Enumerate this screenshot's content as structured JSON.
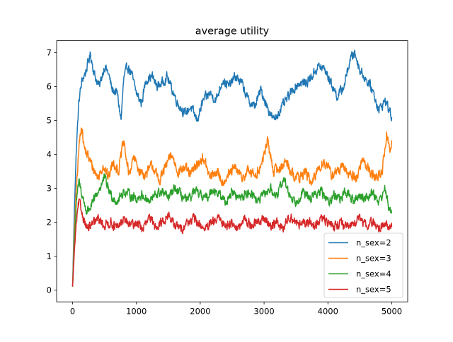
{
  "chart_data": {
    "type": "line",
    "title": "average utility",
    "xlabel": "",
    "ylabel": "",
    "xlim": [
      -250,
      5250
    ],
    "ylim": [
      -0.35,
      7.35
    ],
    "x_ticks": [
      0,
      1000,
      2000,
      3000,
      4000,
      5000
    ],
    "y_ticks": [
      0,
      1,
      2,
      3,
      4,
      5,
      6,
      7
    ],
    "grid": false,
    "legend_position": "lower right",
    "x_range": [
      0,
      5000
    ],
    "series": [
      {
        "name": "n_sex=2",
        "color": "#1f77b4",
        "keypoints": [
          [
            0,
            0.1
          ],
          [
            30,
            2.5
          ],
          [
            60,
            4.2
          ],
          [
            100,
            5.6
          ],
          [
            150,
            6.2
          ],
          [
            200,
            6.4
          ],
          [
            280,
            6.95
          ],
          [
            350,
            6.3
          ],
          [
            420,
            6.0
          ],
          [
            500,
            6.6
          ],
          [
            560,
            6.4
          ],
          [
            620,
            5.9
          ],
          [
            700,
            5.8
          ],
          [
            760,
            5.0
          ],
          [
            800,
            6.2
          ],
          [
            860,
            6.6
          ],
          [
            920,
            6.4
          ],
          [
            1000,
            5.8
          ],
          [
            1080,
            5.5
          ],
          [
            1150,
            6.2
          ],
          [
            1250,
            6.3
          ],
          [
            1320,
            6.0
          ],
          [
            1400,
            6.1
          ],
          [
            1480,
            6.3
          ],
          [
            1560,
            5.9
          ],
          [
            1650,
            5.5
          ],
          [
            1760,
            5.2
          ],
          [
            1850,
            5.4
          ],
          [
            1950,
            5.0
          ],
          [
            2050,
            5.6
          ],
          [
            2150,
            5.8
          ],
          [
            2250,
            5.6
          ],
          [
            2350,
            6.2
          ],
          [
            2450,
            6.0
          ],
          [
            2550,
            6.3
          ],
          [
            2650,
            6.1
          ],
          [
            2750,
            5.6
          ],
          [
            2850,
            5.4
          ],
          [
            2950,
            5.9
          ],
          [
            3050,
            5.4
          ],
          [
            3150,
            5.0
          ],
          [
            3250,
            5.3
          ],
          [
            3350,
            5.6
          ],
          [
            3450,
            5.9
          ],
          [
            3550,
            6.1
          ],
          [
            3650,
            6.1
          ],
          [
            3750,
            6.3
          ],
          [
            3850,
            6.6
          ],
          [
            3950,
            6.5
          ],
          [
            4050,
            6.1
          ],
          [
            4150,
            5.7
          ],
          [
            4250,
            6.0
          ],
          [
            4350,
            6.8
          ],
          [
            4420,
            7.0
          ],
          [
            4500,
            6.5
          ],
          [
            4600,
            6.2
          ],
          [
            4700,
            5.9
          ],
          [
            4800,
            5.3
          ],
          [
            4900,
            5.6
          ],
          [
            5000,
            5.1
          ]
        ]
      },
      {
        "name": "n_sex=3",
        "color": "#ff7f0e",
        "keypoints": [
          [
            0,
            0.1
          ],
          [
            30,
            1.8
          ],
          [
            60,
            3.0
          ],
          [
            100,
            4.2
          ],
          [
            140,
            4.9
          ],
          [
            180,
            4.2
          ],
          [
            250,
            3.9
          ],
          [
            320,
            3.6
          ],
          [
            400,
            3.3
          ],
          [
            480,
            3.7
          ],
          [
            560,
            3.3
          ],
          [
            640,
            3.8
          ],
          [
            720,
            3.5
          ],
          [
            800,
            4.4
          ],
          [
            880,
            3.4
          ],
          [
            960,
            3.9
          ],
          [
            1050,
            3.5
          ],
          [
            1150,
            3.4
          ],
          [
            1250,
            3.7
          ],
          [
            1350,
            3.2
          ],
          [
            1450,
            3.6
          ],
          [
            1550,
            4.0
          ],
          [
            1650,
            3.5
          ],
          [
            1750,
            3.6
          ],
          [
            1850,
            3.4
          ],
          [
            1950,
            3.7
          ],
          [
            2050,
            3.9
          ],
          [
            2150,
            3.3
          ],
          [
            2250,
            3.5
          ],
          [
            2350,
            3.2
          ],
          [
            2450,
            3.4
          ],
          [
            2550,
            3.6
          ],
          [
            2650,
            3.3
          ],
          [
            2750,
            3.5
          ],
          [
            2850,
            3.4
          ],
          [
            2950,
            3.6
          ],
          [
            3050,
            4.4
          ],
          [
            3150,
            3.5
          ],
          [
            3250,
            3.6
          ],
          [
            3350,
            3.8
          ],
          [
            3450,
            3.4
          ],
          [
            3550,
            3.3
          ],
          [
            3650,
            3.5
          ],
          [
            3750,
            3.1
          ],
          [
            3850,
            3.6
          ],
          [
            3950,
            3.8
          ],
          [
            4050,
            3.4
          ],
          [
            4150,
            3.5
          ],
          [
            4250,
            3.6
          ],
          [
            4350,
            3.4
          ],
          [
            4450,
            3.3
          ],
          [
            4550,
            3.9
          ],
          [
            4650,
            3.5
          ],
          [
            4750,
            3.3
          ],
          [
            4850,
            3.5
          ],
          [
            4920,
            4.6
          ],
          [
            4970,
            4.1
          ],
          [
            5000,
            4.3
          ]
        ]
      },
      {
        "name": "n_sex=4",
        "color": "#2ca02c",
        "keypoints": [
          [
            0,
            0.1
          ],
          [
            30,
            1.5
          ],
          [
            60,
            2.6
          ],
          [
            100,
            3.2
          ],
          [
            150,
            2.8
          ],
          [
            220,
            2.3
          ],
          [
            300,
            2.5
          ],
          [
            400,
            2.9
          ],
          [
            500,
            3.3
          ],
          [
            600,
            2.8
          ],
          [
            700,
            2.6
          ],
          [
            800,
            2.9
          ],
          [
            900,
            2.8
          ],
          [
            1000,
            2.7
          ],
          [
            1100,
            2.8
          ],
          [
            1200,
            2.6
          ],
          [
            1300,
            2.8
          ],
          [
            1400,
            2.9
          ],
          [
            1500,
            2.7
          ],
          [
            1600,
            3.0
          ],
          [
            1700,
            2.8
          ],
          [
            1800,
            2.6
          ],
          [
            1900,
            2.9
          ],
          [
            2000,
            2.8
          ],
          [
            2100,
            2.7
          ],
          [
            2200,
            3.0
          ],
          [
            2300,
            2.8
          ],
          [
            2400,
            2.6
          ],
          [
            2500,
            2.9
          ],
          [
            2600,
            2.7
          ],
          [
            2700,
            2.8
          ],
          [
            2800,
            2.9
          ],
          [
            2900,
            2.6
          ],
          [
            3000,
            2.8
          ],
          [
            3100,
            3.0
          ],
          [
            3200,
            2.7
          ],
          [
            3300,
            3.3
          ],
          [
            3400,
            2.8
          ],
          [
            3500,
            2.6
          ],
          [
            3600,
            2.9
          ],
          [
            3700,
            2.7
          ],
          [
            3800,
            2.8
          ],
          [
            3900,
            2.9
          ],
          [
            4000,
            2.6
          ],
          [
            4100,
            2.8
          ],
          [
            4200,
            2.7
          ],
          [
            4300,
            2.9
          ],
          [
            4400,
            2.6
          ],
          [
            4500,
            2.8
          ],
          [
            4600,
            2.7
          ],
          [
            4700,
            2.9
          ],
          [
            4800,
            2.6
          ],
          [
            4900,
            3.0
          ],
          [
            4960,
            2.3
          ],
          [
            5000,
            2.4
          ]
        ]
      },
      {
        "name": "n_sex=5",
        "color": "#d62728",
        "keypoints": [
          [
            0,
            0.1
          ],
          [
            30,
            1.2
          ],
          [
            60,
            2.0
          ],
          [
            100,
            2.6
          ],
          [
            160,
            2.2
          ],
          [
            230,
            1.8
          ],
          [
            300,
            1.9
          ],
          [
            400,
            2.1
          ],
          [
            500,
            1.9
          ],
          [
            600,
            2.0
          ],
          [
            700,
            1.8
          ],
          [
            800,
            2.1
          ],
          [
            900,
            1.9
          ],
          [
            1000,
            2.0
          ],
          [
            1100,
            1.8
          ],
          [
            1200,
            2.1
          ],
          [
            1300,
            1.9
          ],
          [
            1400,
            2.0
          ],
          [
            1500,
            2.2
          ],
          [
            1600,
            1.9
          ],
          [
            1700,
            1.8
          ],
          [
            1800,
            2.0
          ],
          [
            1900,
            2.1
          ],
          [
            2000,
            1.9
          ],
          [
            2100,
            1.8
          ],
          [
            2200,
            2.0
          ],
          [
            2300,
            2.1
          ],
          [
            2400,
            1.9
          ],
          [
            2500,
            2.0
          ],
          [
            2600,
            1.8
          ],
          [
            2700,
            2.1
          ],
          [
            2800,
            1.9
          ],
          [
            2900,
            2.0
          ],
          [
            3000,
            2.1
          ],
          [
            3100,
            1.9
          ],
          [
            3200,
            2.0
          ],
          [
            3300,
            1.8
          ],
          [
            3400,
            2.2
          ],
          [
            3500,
            2.0
          ],
          [
            3600,
            1.9
          ],
          [
            3700,
            2.0
          ],
          [
            3800,
            1.9
          ],
          [
            3900,
            2.1
          ],
          [
            4000,
            2.0
          ],
          [
            4100,
            1.9
          ],
          [
            4200,
            2.0
          ],
          [
            4300,
            1.8
          ],
          [
            4400,
            2.0
          ],
          [
            4500,
            2.1
          ],
          [
            4600,
            1.9
          ],
          [
            4700,
            2.0
          ],
          [
            4800,
            1.8
          ],
          [
            4900,
            2.0
          ],
          [
            4960,
            1.8
          ],
          [
            5000,
            1.9
          ]
        ]
      }
    ],
    "noise_amplitude": [
      0.22,
      0.25,
      0.22,
      0.22
    ]
  }
}
